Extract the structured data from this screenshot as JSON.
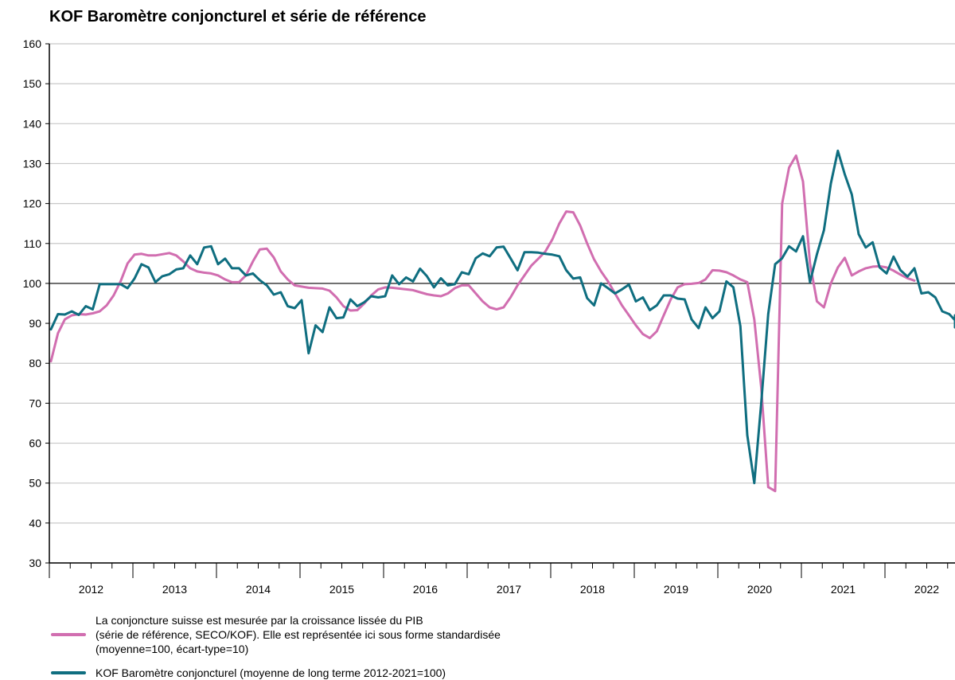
{
  "chart_data": {
    "type": "line",
    "title": "KOF Baromètre conjoncturel et série de référence",
    "ylim": [
      30,
      160
    ],
    "yticks": [
      30,
      40,
      50,
      60,
      70,
      80,
      90,
      100,
      110,
      120,
      130,
      140,
      150,
      160
    ],
    "reference_line": 100,
    "x_start_year": 2012,
    "x_end_year": 2022,
    "year_labels": [
      "2012",
      "2013",
      "2014",
      "2015",
      "2016",
      "2017",
      "2018",
      "2019",
      "2020",
      "2021",
      "2022"
    ],
    "grid": "horizontal",
    "legend_position": "bottom",
    "series": [
      {
        "name": "La conjoncture suisse est mesurée par la croissance lissée du PIB (série de référence, SECO/KOF). Elle est représentée ici sous forme standardisée (moyenne=100, écart-type=10)",
        "name_lines": [
          "La conjoncture suisse est mesurée par la croissance lissée du PIB",
          "(série de référence, SECO/KOF). Elle est représentée ici sous forme standardisée",
          "(moyenne=100, écart-type=10)"
        ],
        "color": "#d16eb0",
        "start": "2012-01",
        "values": [
          80.5,
          87.5,
          91,
          92,
          92.3,
          92.2,
          92.5,
          93,
          94.5,
          97,
          100.5,
          105,
          107.2,
          107.4,
          107,
          107,
          107.3,
          107.6,
          107,
          105.5,
          103.8,
          103,
          102.7,
          102.5,
          102,
          101,
          100.3,
          100.3,
          102,
          105.5,
          108.5,
          108.7,
          106.5,
          103,
          101,
          99.5,
          99.2,
          98.9,
          98.8,
          98.7,
          98.2,
          96.5,
          94.3,
          93.2,
          93.3,
          95,
          97,
          98.5,
          99,
          98.9,
          98.7,
          98.5,
          98.3,
          97.8,
          97.3,
          97,
          96.8,
          97.5,
          98.8,
          99.5,
          99.5,
          97.5,
          95.5,
          94,
          93.5,
          94,
          96.5,
          99.5,
          102,
          104.5,
          106.2,
          108,
          111,
          115,
          118,
          117.8,
          114.5,
          110,
          106,
          103,
          100.5,
          97.5,
          94.5,
          92,
          89.5,
          87.3,
          86.3,
          88,
          92,
          96,
          99,
          99.8,
          99.9,
          100.1,
          101,
          103.3,
          103.2,
          102.8,
          102,
          101,
          100.3,
          91,
          74,
          49,
          48,
          120,
          129,
          132,
          125.5,
          105,
          95.5,
          94,
          100,
          104,
          106.4,
          102,
          103,
          103.8,
          104.2,
          104.3,
          104,
          103.2,
          102.2,
          101.3,
          100.7
        ]
      },
      {
        "name": "KOF Baromètre conjoncturel (moyenne de long terme 2012-2021=100)",
        "name_lines": [
          "KOF Baromètre conjoncturel (moyenne de long terme 2012-2021=100)"
        ],
        "color": "#0f6e80",
        "start": "2012-01",
        "values": [
          88.5,
          92.3,
          92.2,
          93,
          92.1,
          94.3,
          93.5,
          99.8,
          99.8,
          99.8,
          99.8,
          98.8,
          101.2,
          104.8,
          104,
          100.3,
          101.8,
          102.3,
          103.5,
          103.8,
          107,
          104.8,
          109,
          109.3,
          104.8,
          106.2,
          103.8,
          103.8,
          102,
          102.5,
          100.8,
          99.5,
          97.2,
          97.8,
          94.3,
          93.8,
          95.8,
          82.5,
          89.5,
          87.8,
          94,
          91.3,
          91.5,
          96,
          94.3,
          95.3,
          96.8,
          96.5,
          96.8,
          102,
          99.8,
          101.5,
          100.5,
          103.7,
          101.8,
          99,
          101.3,
          99.5,
          99.8,
          102.8,
          102.3,
          106.3,
          107.5,
          106.8,
          109,
          109.2,
          106.3,
          103.3,
          107.8,
          107.8,
          107.7,
          107.4,
          107.2,
          106.8,
          103.3,
          101.2,
          101.5,
          96.3,
          94.5,
          100,
          98.8,
          97.5,
          98.5,
          99.7,
          95.5,
          96.5,
          93.3,
          94.5,
          97,
          97,
          96.2,
          96,
          91,
          88.8,
          94,
          91.3,
          93,
          100.5,
          99,
          89.3,
          62,
          50,
          70,
          92.3,
          104.8,
          106.3,
          109.3,
          108,
          111.8,
          100.3,
          107.3,
          113.3,
          125,
          133.2,
          127.3,
          122.3,
          112.3,
          109,
          110.3,
          104,
          102.5,
          106.7,
          103.3,
          101.7,
          103.8,
          97.5,
          97.8,
          96.5,
          93,
          92.3,
          90.8,
          89,
          92
        ]
      }
    ]
  }
}
